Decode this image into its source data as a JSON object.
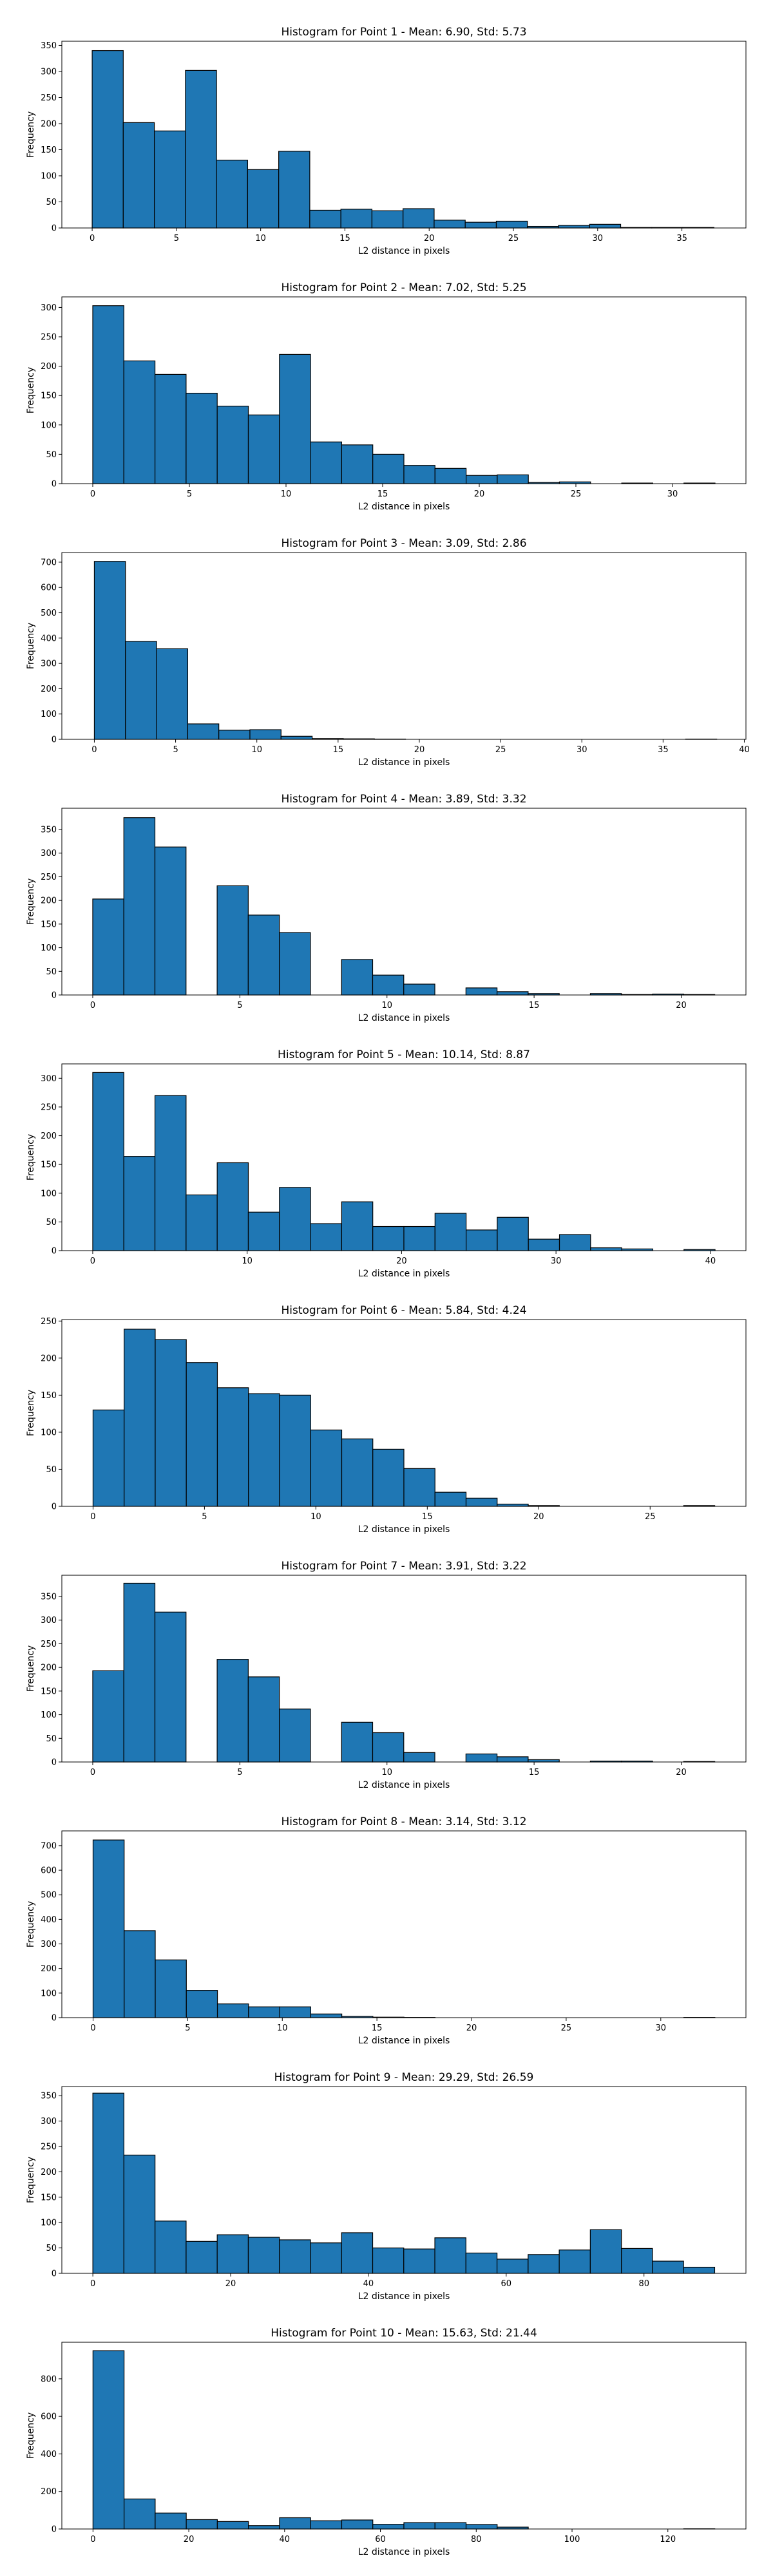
{
  "chart_data": [
    {
      "type": "bar",
      "title": "Histogram for Point 1 - Mean: 6.90, Std: 5.73",
      "xlabel": "L2 distance in pixels",
      "ylabel": "Frequency",
      "xlim": [
        -1.8,
        38.8
      ],
      "ylim": [
        0,
        358
      ],
      "xticks": [
        0,
        5,
        10,
        15,
        20,
        25,
        30,
        35
      ],
      "yticks": [
        0,
        50,
        100,
        150,
        200,
        250,
        300,
        350
      ],
      "bin_start": 0,
      "bin_width": 1.845,
      "values": [
        340,
        202,
        186,
        302,
        130,
        112,
        147,
        34,
        36,
        33,
        37,
        15,
        11,
        13,
        3,
        5,
        7,
        1,
        1,
        1
      ],
      "color": "#1f77b4"
    },
    {
      "type": "bar",
      "title": "Histogram for Point 2 - Mean: 7.02, Std: 5.25",
      "xlabel": "L2 distance in pixels",
      "ylabel": "Frequency",
      "xlim": [
        -1.6,
        33.8
      ],
      "ylim": [
        0,
        318
      ],
      "xticks": [
        0,
        5,
        10,
        15,
        20,
        25,
        30
      ],
      "yticks": [
        0,
        50,
        100,
        150,
        200,
        250,
        300
      ],
      "bin_start": 0,
      "bin_width": 1.61,
      "values": [
        303,
        209,
        186,
        154,
        132,
        117,
        220,
        71,
        66,
        50,
        31,
        26,
        14,
        15,
        2,
        3,
        0,
        1,
        0,
        1
      ],
      "color": "#1f77b4"
    },
    {
      "type": "bar",
      "title": "Histogram for Point 3 - Mean: 3.09, Std: 2.86",
      "xlabel": "L2 distance in pixels",
      "ylabel": "Frequency",
      "xlim": [
        -2,
        40.1
      ],
      "ylim": [
        0,
        738
      ],
      "xticks": [
        0,
        5,
        10,
        15,
        20,
        25,
        30,
        35,
        40
      ],
      "yticks": [
        0,
        100,
        200,
        300,
        400,
        500,
        600,
        700
      ],
      "bin_start": 0,
      "bin_width": 1.915,
      "values": [
        703,
        387,
        358,
        61,
        36,
        38,
        12,
        3,
        2,
        1,
        0,
        0,
        0,
        0,
        0,
        0,
        0,
        0,
        0,
        1
      ],
      "color": "#1f77b4"
    },
    {
      "type": "bar",
      "title": "Histogram for Point 4 - Mean: 3.89, Std: 3.32",
      "xlabel": "L2 distance in pixels",
      "ylabel": "Frequency",
      "xlim": [
        -1.05,
        22.2
      ],
      "ylim": [
        0,
        395
      ],
      "xticks": [
        0,
        5,
        10,
        15,
        20
      ],
      "yticks": [
        0,
        50,
        100,
        150,
        200,
        250,
        300,
        350
      ],
      "bin_start": 0,
      "bin_width": 1.057,
      "values": [
        203,
        375,
        313,
        0,
        231,
        169,
        132,
        0,
        75,
        42,
        23,
        0,
        15,
        7,
        3,
        0,
        3,
        1,
        2,
        1
      ],
      "color": "#1f77b4"
    },
    {
      "type": "bar",
      "title": "Histogram for Point 5 - Mean: 10.14, Std: 8.87",
      "xlabel": "L2 distance in pixels",
      "ylabel": "Frequency",
      "xlim": [
        -2,
        42.3
      ],
      "ylim": [
        0,
        325
      ],
      "xticks": [
        0,
        10,
        20,
        30,
        40
      ],
      "yticks": [
        0,
        50,
        100,
        150,
        200,
        250,
        300
      ],
      "bin_start": 0,
      "bin_width": 2.015,
      "values": [
        310,
        164,
        270,
        97,
        153,
        67,
        110,
        47,
        85,
        42,
        42,
        65,
        36,
        58,
        20,
        28,
        5,
        3,
        0,
        2
      ],
      "color": "#1f77b4"
    },
    {
      "type": "bar",
      "title": "Histogram for Point 6 - Mean: 5.84, Std: 4.24",
      "xlabel": "L2 distance in pixels",
      "ylabel": "Frequency",
      "xlim": [
        -1.4,
        29.3
      ],
      "ylim": [
        0,
        252
      ],
      "xticks": [
        0,
        5,
        10,
        15,
        20,
        25
      ],
      "yticks": [
        0,
        50,
        100,
        150,
        200,
        250
      ],
      "bin_start": 0,
      "bin_width": 1.395,
      "values": [
        130,
        239,
        225,
        194,
        160,
        152,
        150,
        103,
        91,
        77,
        51,
        19,
        11,
        3,
        1,
        0,
        0,
        0,
        0,
        1
      ],
      "color": "#1f77b4"
    },
    {
      "type": "bar",
      "title": "Histogram for Point 7 - Mean: 3.91, Std: 3.22",
      "xlabel": "L2 distance in pixels",
      "ylabel": "Frequency",
      "xlim": [
        -1.05,
        22.2
      ],
      "ylim": [
        0,
        395
      ],
      "xticks": [
        0,
        5,
        10,
        15,
        20
      ],
      "yticks": [
        0,
        50,
        100,
        150,
        200,
        250,
        300,
        350
      ],
      "bin_start": 0,
      "bin_width": 1.057,
      "values": [
        193,
        378,
        317,
        0,
        217,
        180,
        112,
        0,
        84,
        62,
        20,
        0,
        17,
        11,
        5,
        0,
        2,
        2,
        0,
        1
      ],
      "color": "#1f77b4"
    },
    {
      "type": "bar",
      "title": "Histogram for Point 8 - Mean: 3.14, Std: 3.12",
      "xlabel": "L2 distance in pixels",
      "ylabel": "Frequency",
      "xlim": [
        -1.65,
        34.5
      ],
      "ylim": [
        0,
        760
      ],
      "xticks": [
        0,
        5,
        10,
        15,
        20,
        25,
        30
      ],
      "yticks": [
        0,
        100,
        200,
        300,
        400,
        500,
        600,
        700
      ],
      "bin_start": 0,
      "bin_width": 1.643,
      "values": [
        723,
        354,
        235,
        111,
        56,
        44,
        44,
        15,
        5,
        2,
        1,
        0,
        0,
        0,
        0,
        0,
        0,
        0,
        0,
        1
      ],
      "color": "#1f77b4"
    },
    {
      "type": "bar",
      "title": "Histogram for Point 9 - Mean: 29.29, Std: 26.59",
      "xlabel": "L2 distance in pixels",
      "ylabel": "Frequency",
      "xlim": [
        -4.5,
        94.8
      ],
      "ylim": [
        0,
        368
      ],
      "xticks": [
        0,
        20,
        40,
        60,
        80
      ],
      "yticks": [
        0,
        50,
        100,
        150,
        200,
        250,
        300,
        350
      ],
      "bin_start": 0,
      "bin_width": 4.513,
      "values": [
        355,
        233,
        103,
        63,
        76,
        71,
        66,
        60,
        80,
        50,
        48,
        70,
        40,
        28,
        37,
        46,
        86,
        49,
        24,
        12
      ],
      "color": "#1f77b4"
    },
    {
      "type": "bar",
      "title": "Histogram for Point 10 - Mean: 15.63, Std: 21.44",
      "xlabel": "L2 distance in pixels",
      "ylabel": "Frequency",
      "xlim": [
        -6.5,
        136.3
      ],
      "ylim": [
        0,
        995
      ],
      "xticks": [
        0,
        20,
        40,
        60,
        80,
        100,
        120
      ],
      "yticks": [
        0,
        200,
        400,
        600,
        800
      ],
      "bin_start": 0,
      "bin_width": 6.49,
      "values": [
        950,
        160,
        85,
        50,
        40,
        18,
        60,
        44,
        48,
        25,
        34,
        34,
        24,
        10,
        0,
        0,
        0,
        0,
        0,
        1
      ],
      "color": "#1f77b4"
    }
  ]
}
